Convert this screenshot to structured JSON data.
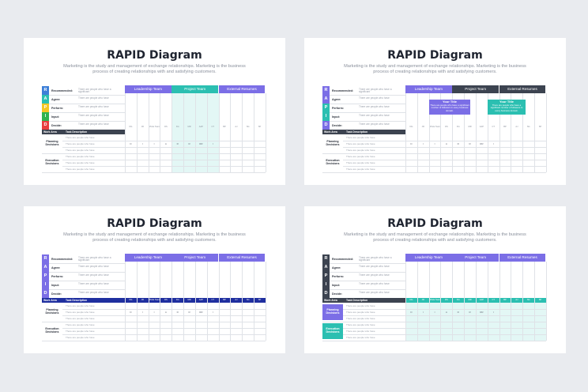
{
  "colors": {
    "purple": "#7b6ee6",
    "teal": "#2bbfb1",
    "dark": "#3c4350",
    "navy": "#1f2f9f",
    "light_teal": "#e3f7f5",
    "red": "#e83e3e",
    "yellow": "#f5c623",
    "green": "#2fb34e",
    "blue": "#3d7fd8"
  },
  "slides": [
    {
      "title": "RAPID Diagram",
      "subtitle": "Marketing is the study and management of exchange relationships. Marketing is the business process of creating relationships with and satisfying customers.",
      "letters": [
        "R",
        "A",
        "P",
        "I",
        "D"
      ],
      "roles": [
        {
          "label": "Recommended:",
          "desc": "There are people who have a significant"
        },
        {
          "label": "Agree:",
          "desc": "There are people who have"
        },
        {
          "label": "Perform:",
          "desc": "There are people who have"
        },
        {
          "label": "Input:",
          "desc": "There are people who have"
        },
        {
          "label": "Decide:",
          "desc": "There are people who have"
        }
      ],
      "teams": [
        "Leadership Team",
        "Project Team",
        "External Resumes"
      ],
      "work_area_label": "Work Area",
      "task_label": "Task Description",
      "codes": [
        "DG",
        "JR",
        "Whole Team",
        "DS",
        "KG",
        "MR",
        "AAP",
        "CT",
        "BP",
        "AJ",
        "SG",
        "SP"
      ],
      "sections": [
        {
          "label": "Planning Decisions",
          "tasks": [
            "There are people who have",
            "There are people who have",
            "There are people who have"
          ],
          "values": [
            "D",
            "I",
            "I",
            "A",
            "R",
            "R",
            "RR",
            "I"
          ]
        },
        {
          "label": "Execution Decisions",
          "tasks": [
            "There are people who have",
            "There are people who have",
            "There are people who have"
          ]
        }
      ]
    },
    {
      "title": "RAPID Diagram",
      "subtitle": "Marketing is the study and management of exchange relationships. Marketing is the business process of creating relationships with and satisfying customers.",
      "letters": [
        "R",
        "A",
        "P",
        "I",
        "D"
      ],
      "roles": [
        {
          "label": "Recommended:",
          "desc": "There are people who have a significant"
        },
        {
          "label": "Agree:",
          "desc": "There are people who have"
        },
        {
          "label": "Perform:",
          "desc": "There are people who have"
        },
        {
          "label": "Input:",
          "desc": "There are people who have"
        },
        {
          "label": "Decide:",
          "desc": "There are people who have"
        }
      ],
      "teams": [
        "Leadership Team",
        "Project Team",
        "External Resumes"
      ],
      "work_area_label": "Work Area",
      "task_label": "Task Description",
      "codes": [
        "DG",
        "JR",
        "Whole Team",
        "DS",
        "KG",
        "MR",
        "AAP",
        "CT",
        "BP",
        "AJ",
        "SG",
        "SP"
      ],
      "sections": [
        {
          "label": "Planning Decisions",
          "tasks": [
            "There are people who have",
            "There are people who have",
            "There are people who have"
          ],
          "values": [
            "D",
            "I",
            "I",
            "A",
            "R",
            "R",
            "RR",
            "I"
          ]
        },
        {
          "label": "Execution Decisions",
          "tasks": [
            "There are people who have",
            "There are people who have",
            "There are people who have"
          ]
        }
      ],
      "callouts": [
        {
          "title": "Your Title",
          "text": "There are people who have a significant number of followers in every business domain."
        },
        {
          "title": "Your Title",
          "text": "There are people who have a significant number of followers in every business domain."
        }
      ]
    },
    {
      "title": "RAPID Diagram",
      "subtitle": "Marketing is the study and management of exchange relationships. Marketing is the business process of creating relationships with and satisfying customers.",
      "letters": [
        "R",
        "A",
        "P",
        "I",
        "D"
      ],
      "roles": [
        {
          "label": "Recommended:",
          "desc": "There are people who have a significant"
        },
        {
          "label": "Agree:",
          "desc": "There are people who have"
        },
        {
          "label": "Perform:",
          "desc": "There are people who have"
        },
        {
          "label": "Input:",
          "desc": "There are people who have"
        },
        {
          "label": "Decide:",
          "desc": "There are people who have"
        }
      ],
      "teams": [
        "Leadership Team",
        "Project Team",
        "External Resumes"
      ],
      "work_area_label": "Work Area",
      "task_label": "Task Description",
      "codes": [
        "DG",
        "JR",
        "Whole Team",
        "DS",
        "KG",
        "MR",
        "AAP",
        "CT",
        "BP",
        "AJ",
        "SG",
        "SP"
      ],
      "sections": [
        {
          "label": "Planning Decisions",
          "tasks": [
            "There are people who have",
            "There are people who have",
            "There are people who have"
          ],
          "values": [
            "D",
            "I",
            "I",
            "A",
            "R",
            "R",
            "RR",
            "I"
          ]
        },
        {
          "label": "Execution Decisions",
          "tasks": [
            "There are people who have",
            "There are people who have",
            "There are people who have"
          ]
        }
      ]
    },
    {
      "title": "RAPID Diagram",
      "subtitle": "Marketing is the study and management of exchange relationships. Marketing is the business process of creating relationships with and satisfying customers.",
      "letters": [
        "R",
        "A",
        "P",
        "I",
        "D"
      ],
      "roles": [
        {
          "label": "Recommended:",
          "desc": "There are people who have a significant"
        },
        {
          "label": "Agree:",
          "desc": "There are people who have"
        },
        {
          "label": "Perform:",
          "desc": "There are people who have"
        },
        {
          "label": "Input:",
          "desc": "There are people who have"
        },
        {
          "label": "Decide:",
          "desc": "There are people who have"
        }
      ],
      "teams": [
        "Leadership Team",
        "Project Team",
        "External Resumes"
      ],
      "work_area_label": "Work Area",
      "task_label": "Task Description",
      "codes": [
        "DG",
        "JR",
        "Whole Team",
        "DS",
        "KG",
        "MR",
        "AAP",
        "CT",
        "BP",
        "AJ",
        "SG",
        "SP"
      ],
      "sections": [
        {
          "label": "Planning Decisions",
          "tasks": [
            "There are people who have",
            "There are people who have",
            "There are people who have"
          ],
          "values": [
            "D",
            "I",
            "I",
            "A",
            "R",
            "R",
            "RR",
            "I"
          ]
        },
        {
          "label": "Execution Decisions",
          "tasks": [
            "There are people who have",
            "There are people who have",
            "There are people who have"
          ]
        }
      ]
    }
  ]
}
